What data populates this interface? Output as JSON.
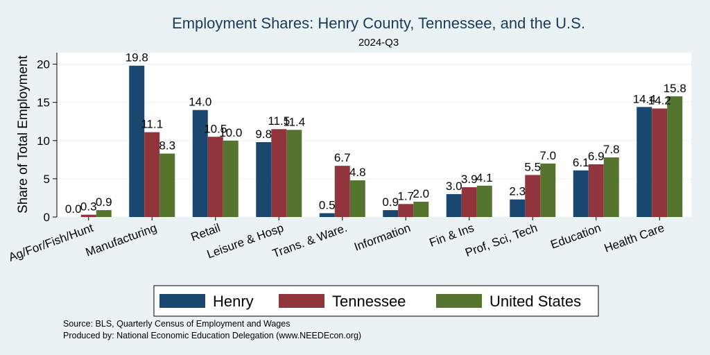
{
  "chart_data": {
    "type": "bar",
    "title": "Employment Shares: Henry County, Tennessee, and the U.S.",
    "subtitle": "2024-Q3",
    "ylabel": "Share of Total Employment",
    "xlabel": "",
    "ylim": [
      0,
      21.5
    ],
    "yticks": [
      0,
      5,
      10,
      15,
      20
    ],
    "grid": true,
    "legend_position": "bottom",
    "categories": [
      "Ag/For/Fish/Hunt",
      "Manufacturing",
      "Retail",
      "Leisure & Hosp",
      "Trans. & Ware.",
      "Information",
      "Fin & Ins",
      "Prof, Sci, Tech",
      "Education",
      "Health Care"
    ],
    "series": [
      {
        "name": "Henry",
        "color": "#1a476f",
        "values": [
          0.0,
          19.8,
          14.0,
          9.8,
          0.5,
          0.9,
          3.0,
          2.3,
          6.1,
          14.4
        ],
        "labels": [
          "0.0",
          "19.8",
          "14.0",
          "9.8",
          "0.5",
          "0.9",
          "3.0",
          "2.3",
          "6.1",
          "14.4"
        ]
      },
      {
        "name": "Tennessee",
        "color": "#90353b",
        "values": [
          0.3,
          11.1,
          10.5,
          11.5,
          6.7,
          1.7,
          3.9,
          5.5,
          6.9,
          14.2
        ],
        "labels": [
          "0.3",
          "11.1",
          "10.5",
          "11.5",
          "6.7",
          "1.7",
          "3.9",
          "5.5",
          "6.9",
          "14.2"
        ]
      },
      {
        "name": "United States",
        "color": "#55752f",
        "values": [
          0.9,
          8.3,
          10.0,
          11.4,
          4.8,
          2.0,
          4.1,
          7.0,
          7.8,
          15.8
        ],
        "labels": [
          "0.9",
          "8.3",
          "10.0",
          "11.4",
          "4.8",
          "2.0",
          "4.1",
          "7.0",
          "7.8",
          "15.8"
        ]
      }
    ],
    "notes": [
      "Source: BLS, Quarterly Census of Employment and Wages",
      "Produced by: National Economic Education Delegation (www.NEEDEcon.org)"
    ]
  }
}
